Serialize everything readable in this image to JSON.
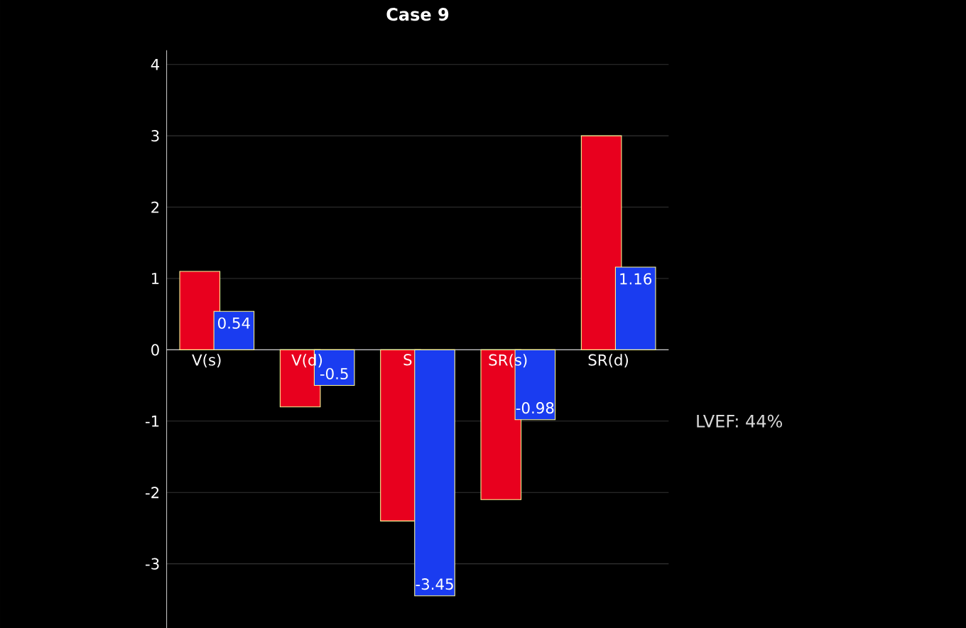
{
  "chart_data": {
    "type": "bar",
    "title": "Case 9",
    "categories": [
      "V(s)",
      "V(d)",
      "S",
      "SR(s)",
      "SR(d)"
    ],
    "series": [
      {
        "color": "#e8001e",
        "values": [
          1.1,
          -0.8,
          -2.4,
          -2.1,
          3.0
        ]
      },
      {
        "color": "#1a3cf0",
        "values": [
          0.54,
          -0.5,
          -3.45,
          -0.98,
          1.16
        ],
        "value_labels": [
          "0.54",
          "-0.5",
          "-3.45",
          "-0.98",
          "1.16"
        ]
      }
    ],
    "ylim": [
      -3.9,
      4.2
    ],
    "yticks": [
      -3,
      -2,
      -1,
      0,
      1,
      2,
      3,
      4
    ],
    "grid": "y",
    "annotations": [
      "LVEF: 44%"
    ]
  }
}
